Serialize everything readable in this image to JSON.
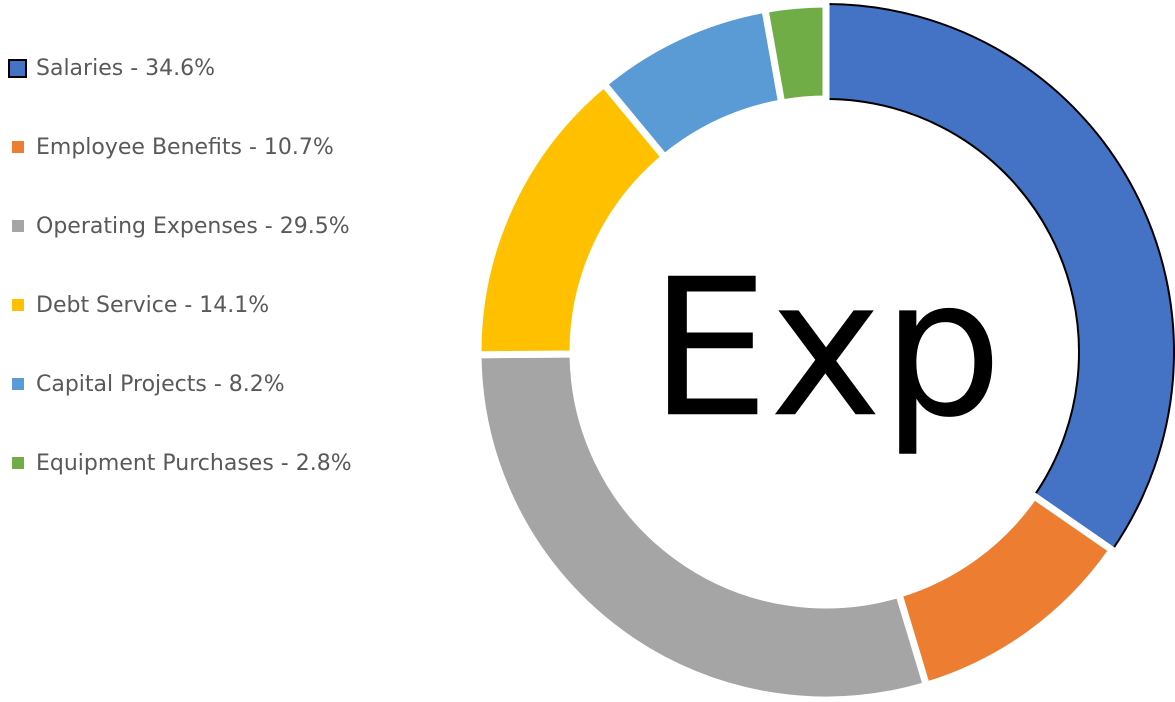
{
  "chart_data": {
    "type": "donut",
    "center_label": "Exp",
    "categories": [
      "Salaries - 34.6%",
      "Employee Benefits - 10.7%",
      "Operating Expenses - 29.5%",
      "Debt Service - 14.1%",
      "Capital Projects - 8.2%",
      "Equipment Purchases - 2.8%"
    ],
    "values": [
      34.6,
      10.7,
      29.5,
      14.1,
      8.2,
      2.8
    ],
    "colors": [
      "#4472c4",
      "#ed7d31",
      "#a5a5a5",
      "#ffc000",
      "#5b9bd5",
      "#70ad47"
    ],
    "legend": "left"
  }
}
